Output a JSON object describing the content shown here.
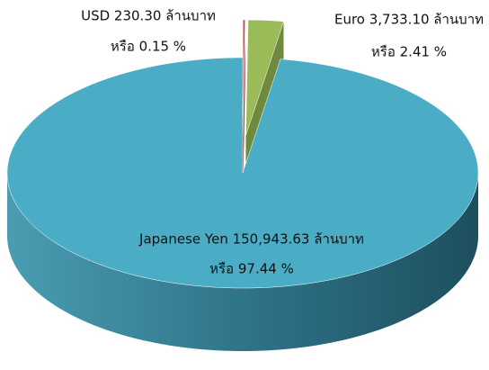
{
  "chart_data": {
    "type": "pie",
    "labels": [
      "USD 230.30 ล้านบาท",
      "Euro 3,733.10 ล้านบาท",
      "Japanese Yen 150,943.63 ล้านบาท"
    ],
    "values": [
      0.15,
      2.41,
      97.44
    ],
    "value_labels": [
      "หรือ 0.15 %",
      "หรือ 2.41 %",
      "หรือ 97.44 %"
    ],
    "colors": [
      "#c0504d",
      "#9bbb59",
      "#4bacc6"
    ],
    "side_colors": [
      "#8c3331",
      "#6f8a3c",
      "#2f7f93"
    ],
    "exploded": [
      true,
      true,
      false
    ]
  }
}
